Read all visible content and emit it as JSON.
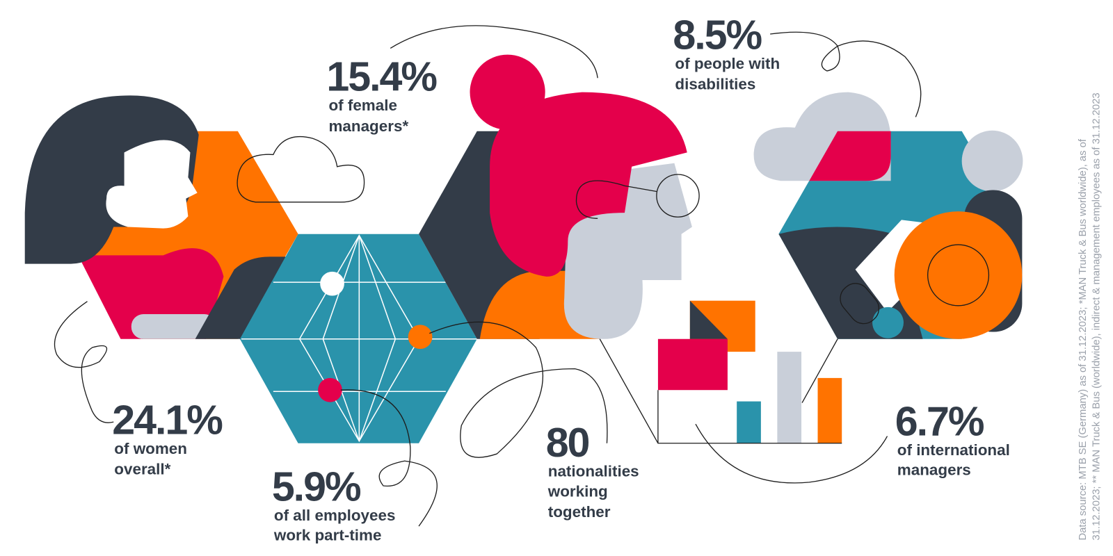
{
  "stats": [
    {
      "figure": "15.4%",
      "lines": [
        "of female",
        "managers*"
      ]
    },
    {
      "figure": "8.5%",
      "lines": [
        "of people with",
        "disabilities"
      ]
    },
    {
      "figure": "24.1%",
      "lines": [
        "of women",
        "overall*"
      ]
    },
    {
      "figure": "5.9%",
      "lines": [
        "of all employees",
        "work part-time"
      ]
    },
    {
      "figure": "80",
      "lines": [
        "nationalities",
        "working",
        "together"
      ]
    },
    {
      "figure": "6.7%",
      "lines": [
        "of international",
        "managers"
      ]
    }
  ],
  "source": [
    "Data source: MTB SE (Germany) as of 31.12.2023; *MAN Truck & Bus worldwide), as of",
    "31.12.2023; ** MAN Truck & Bus (worldwide), indirect & management employees as of 31.12.2023"
  ]
}
